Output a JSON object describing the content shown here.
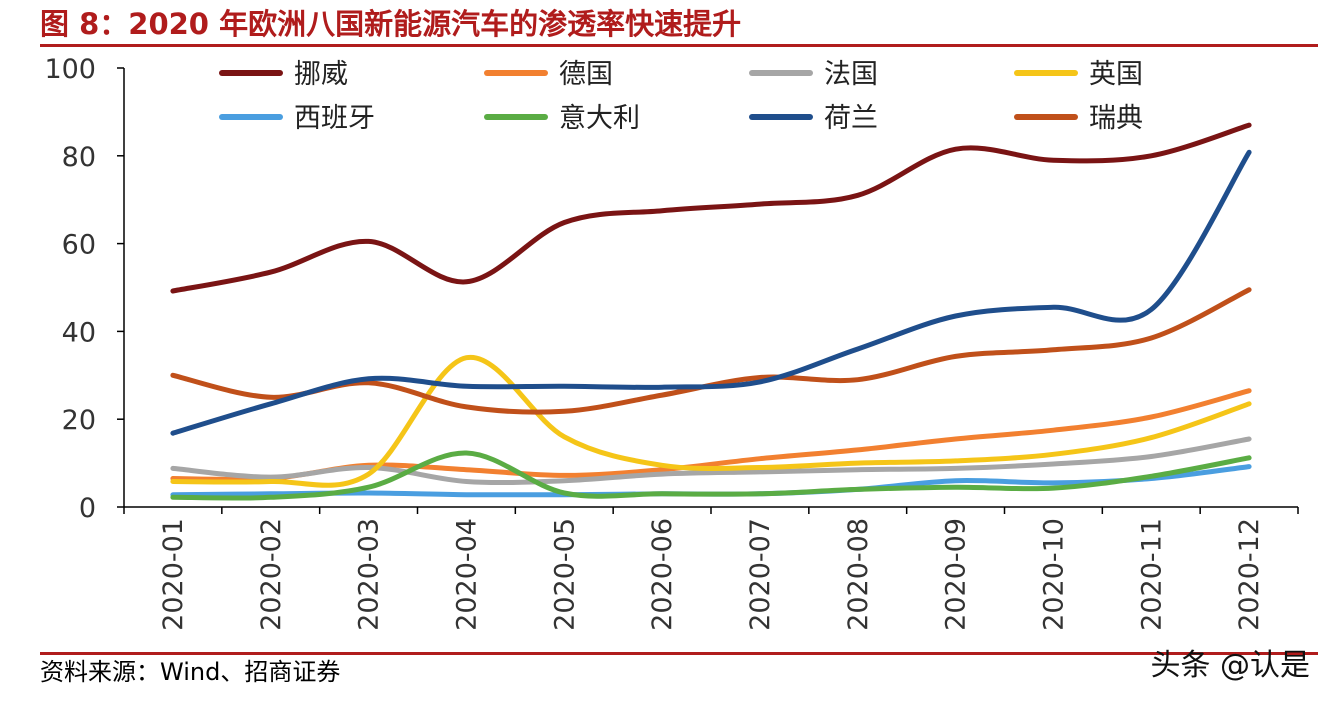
{
  "title": "图 8：2020 年欧洲八国新能源汽车的渗透率快速提升",
  "source": "资料来源：Wind、招商证券",
  "watermark": "头条 @认是",
  "chart_data": {
    "type": "line",
    "x": [
      "2020-01",
      "2020-02",
      "2020-03",
      "2020-04",
      "2020-05",
      "2020-06",
      "2020-07",
      "2020-08",
      "2020-09",
      "2020-10",
      "2020-11",
      "2020-12"
    ],
    "ylim": [
      0,
      100
    ],
    "yticks": [
      "0",
      "20",
      "40",
      "60",
      "80",
      "100"
    ],
    "legend_position": "top",
    "grid": false,
    "series": [
      {
        "name": "挪威",
        "color": "#7a1414",
        "values": [
          49.2,
          53.5,
          60.5,
          51.3,
          64.8,
          67.5,
          69.0,
          71.0,
          81.5,
          79.0,
          80.0,
          87.0
        ]
      },
      {
        "name": "德国",
        "color": "#f28030",
        "values": [
          6.5,
          6.5,
          9.5,
          8.5,
          7.2,
          8.5,
          11.0,
          13.0,
          15.5,
          17.5,
          20.5,
          26.5
        ]
      },
      {
        "name": "法国",
        "color": "#a6a6a6",
        "values": [
          8.8,
          6.8,
          9.0,
          5.8,
          6.0,
          7.5,
          8.0,
          8.5,
          8.8,
          9.8,
          11.5,
          15.5
        ]
      },
      {
        "name": "英国",
        "color": "#f5c518",
        "values": [
          5.8,
          5.8,
          7.5,
          34.0,
          16.0,
          9.5,
          9.0,
          10.0,
          10.5,
          12.0,
          15.8,
          23.5
        ]
      },
      {
        "name": "西班牙",
        "color": "#4a9ee0",
        "values": [
          2.8,
          3.0,
          3.2,
          2.8,
          2.8,
          3.0,
          3.0,
          4.0,
          6.0,
          5.5,
          6.5,
          9.2
        ]
      },
      {
        "name": "意大利",
        "color": "#5aac44",
        "values": [
          2.2,
          2.2,
          4.5,
          12.3,
          3.2,
          3.0,
          3.0,
          4.0,
          4.5,
          4.3,
          7.0,
          11.2
        ]
      },
      {
        "name": "荷兰",
        "color": "#1f4e8c",
        "values": [
          16.8,
          23.5,
          29.2,
          27.5,
          27.5,
          27.3,
          28.5,
          36.0,
          43.5,
          45.5,
          45.0,
          80.8
        ]
      },
      {
        "name": "瑞典",
        "color": "#c0501a",
        "values": [
          30.0,
          25.0,
          28.3,
          22.8,
          21.8,
          25.5,
          29.5,
          29.0,
          34.3,
          35.8,
          38.5,
          49.5
        ]
      }
    ]
  }
}
